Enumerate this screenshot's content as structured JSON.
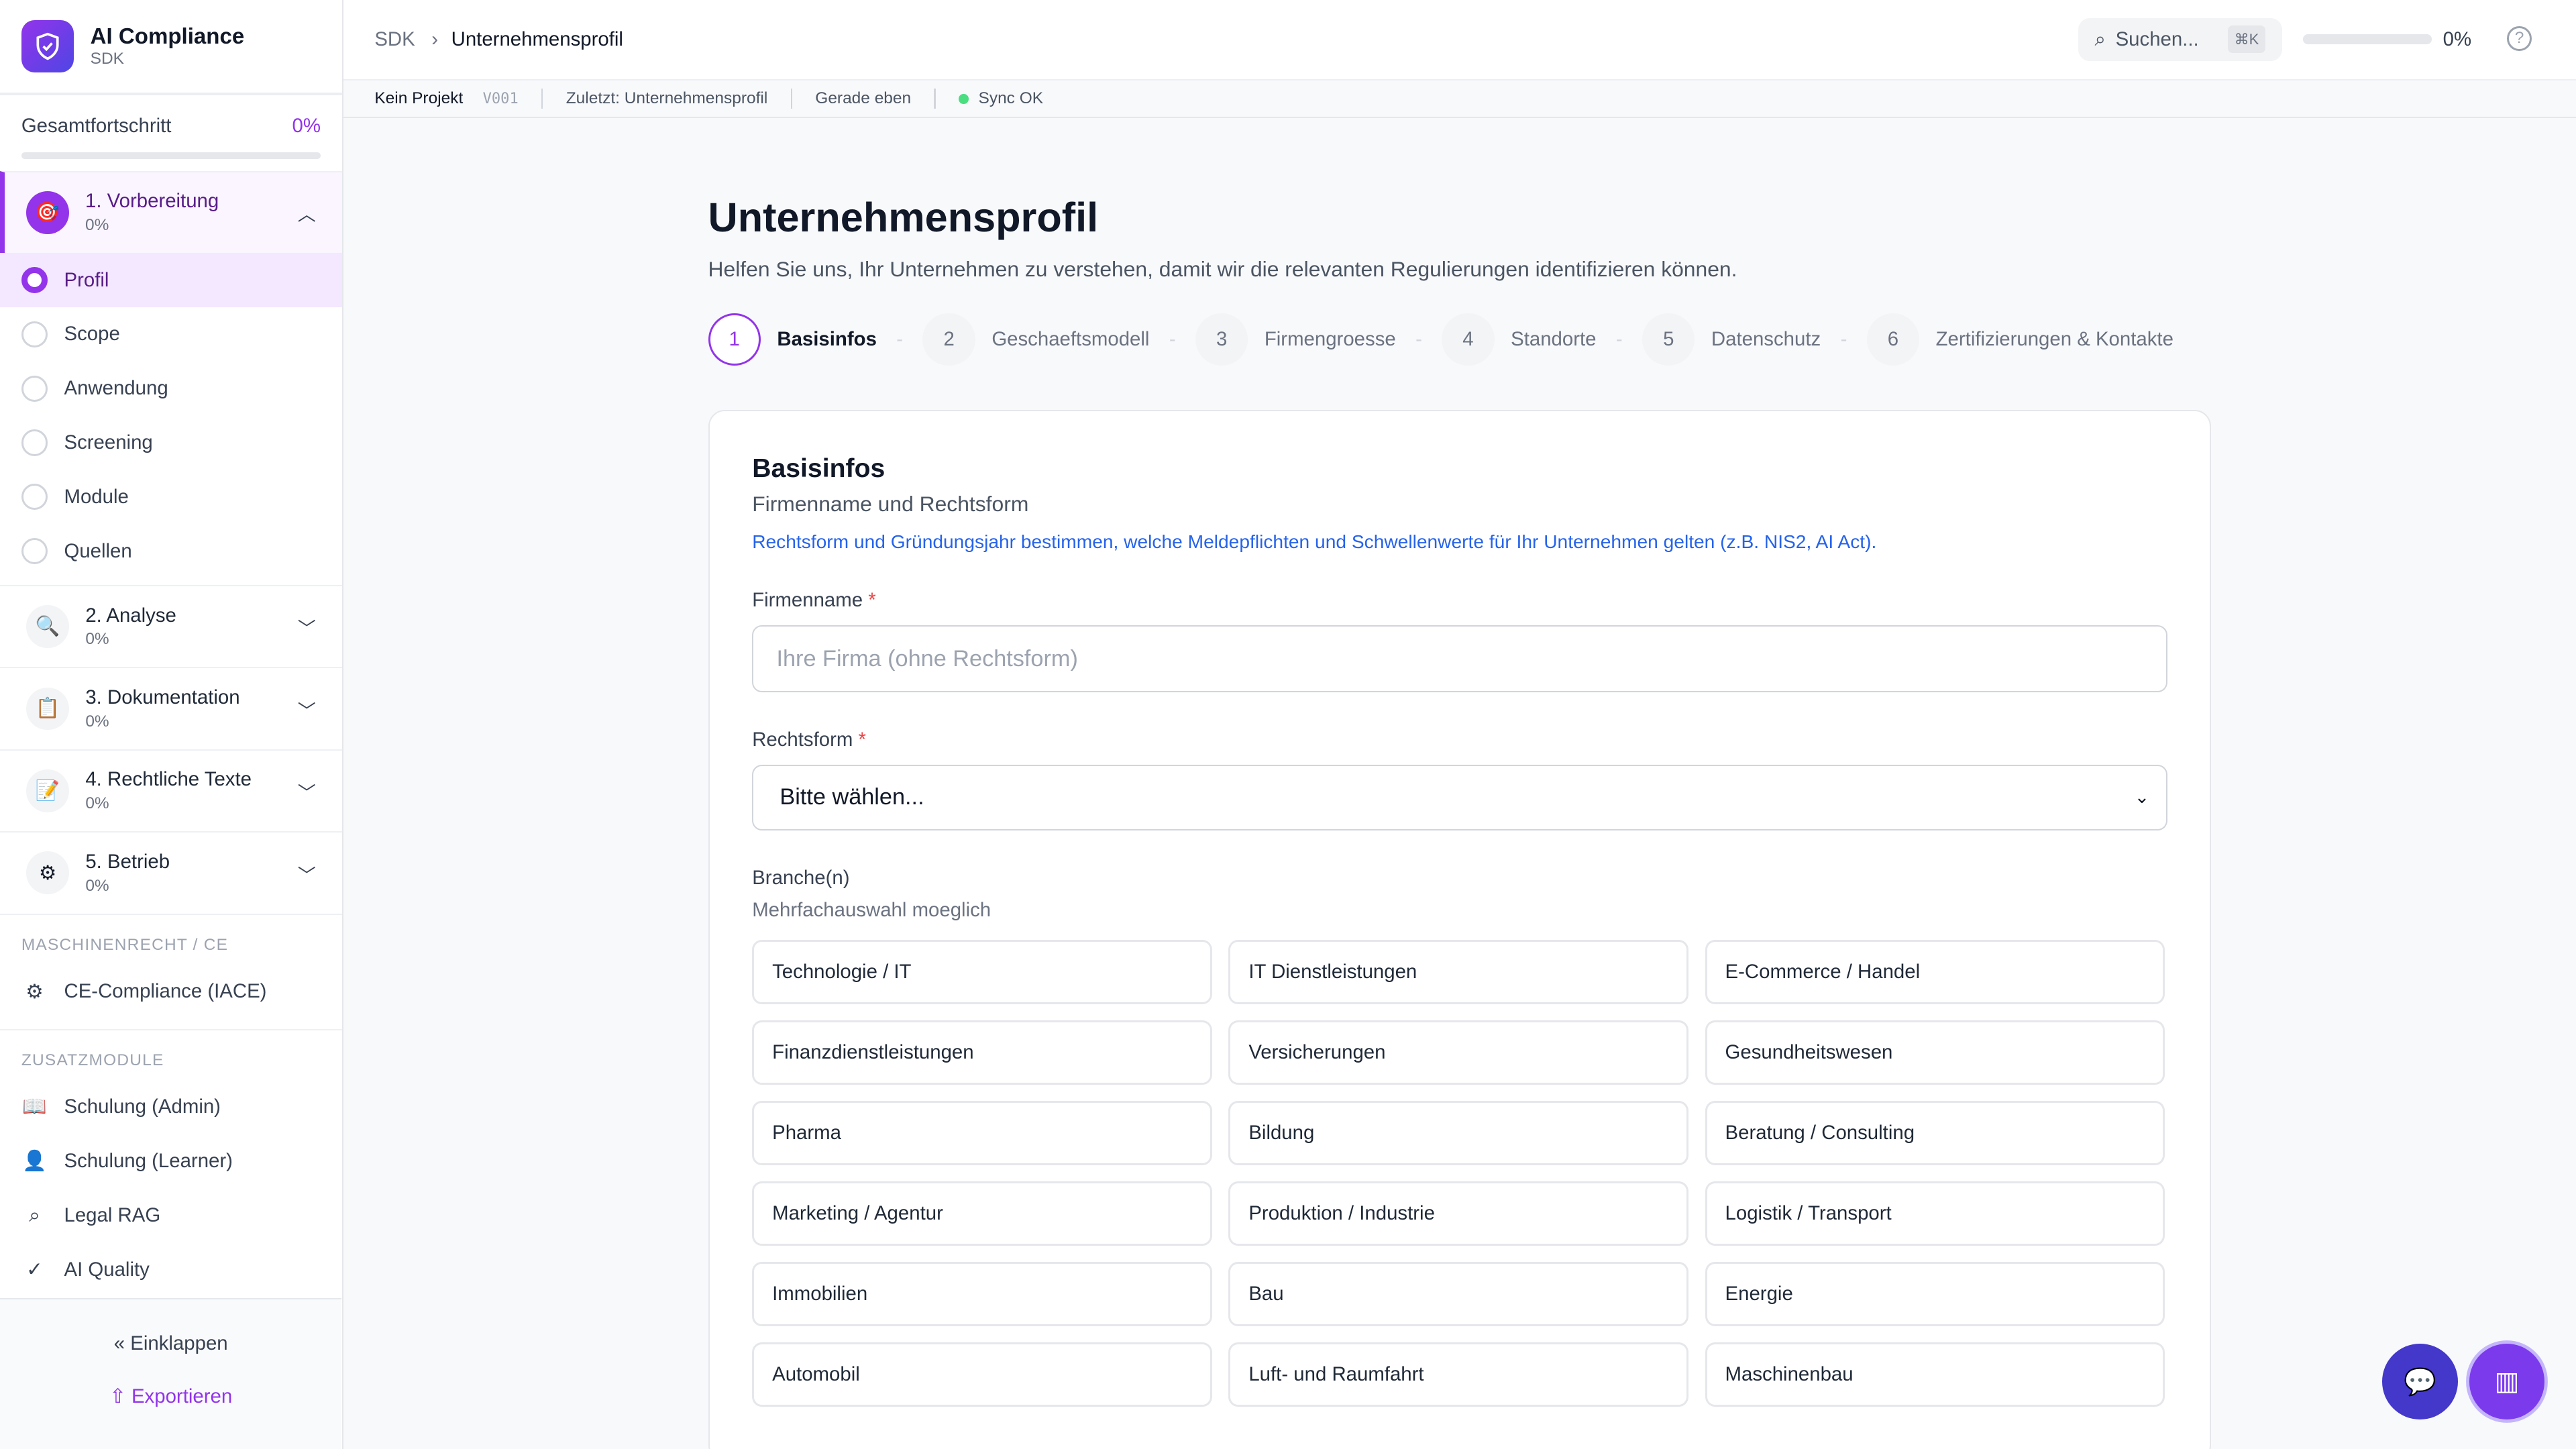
{
  "brand": {
    "title": "AI Compliance",
    "subtitle": "SDK"
  },
  "progress": {
    "label": "Gesamtfortschritt",
    "value": "0%",
    "fraction": 0
  },
  "sections": [
    {
      "label": "1. Vorbereitung",
      "pct": "0%",
      "icon": "target-icon",
      "expanded": true
    },
    {
      "label": "2. Analyse",
      "pct": "0%",
      "icon": "magnifier-icon"
    },
    {
      "label": "3. Dokumentation",
      "pct": "0%",
      "icon": "document-icon"
    },
    {
      "label": "4. Rechtliche Texte",
      "pct": "0%",
      "icon": "pencil-icon"
    },
    {
      "label": "5. Betrieb",
      "pct": "0%",
      "icon": "gear-icon"
    }
  ],
  "steps_nav": [
    "Profil",
    "Scope",
    "Anwendung",
    "Screening",
    "Module",
    "Quellen"
  ],
  "machine": {
    "heading": "MASCHINENRECHT / CE",
    "items": [
      "CE-Compliance (IACE)"
    ]
  },
  "extra": {
    "heading": "ZUSATZMODULE",
    "items": [
      "Schulung (Admin)",
      "Schulung (Learner)",
      "Legal RAG",
      "AI Quality"
    ]
  },
  "footer": {
    "collapse": "Einklappen",
    "export": "Exportieren"
  },
  "topbar": {
    "crumb_root": "SDK",
    "crumb_current": "Unternehmensprofil",
    "search": "Suchen...",
    "shortcut": "⌘K",
    "progress": "0%"
  },
  "status": {
    "project": "Kein Projekt",
    "version": "V001",
    "last": "Zuletzt: Unternehmensprofil",
    "time": "Gerade eben",
    "sync": "Sync OK"
  },
  "page": {
    "title": "Unternehmensprofil",
    "subtitle": "Helfen Sie uns, Ihr Unternehmen zu verstehen, damit wir die relevanten Regulierungen identifizieren können."
  },
  "wizard": [
    {
      "n": "1",
      "label": "Basisinfos"
    },
    {
      "n": "2",
      "label": "Geschaeftsmodell"
    },
    {
      "n": "3",
      "label": "Firmengroesse"
    },
    {
      "n": "4",
      "label": "Standorte"
    },
    {
      "n": "5",
      "label": "Datenschutz"
    },
    {
      "n": "6",
      "label": "Zertifizierungen & Kontakte"
    }
  ],
  "form": {
    "title": "Basisinfos",
    "subtitle": "Firmenname und Rechtsform",
    "hint": "Rechtsform und Gründungsjahr bestimmen, welche Meldepflichten und Schwellenwerte für Ihr Unternehmen gelten (z.B. NIS2, AI Act).",
    "name_label": "Firmenname",
    "name_placeholder": "Ihre Firma (ohne Rechtsform)",
    "legal_label": "Rechtsform",
    "legal_value": "Bitte wählen...",
    "branch_label": "Branche(n)",
    "branch_hint": "Mehrfachauswahl moeglich",
    "branches": [
      "Technologie / IT",
      "IT Dienstleistungen",
      "E-Commerce / Handel",
      "Finanzdienstleistungen",
      "Versicherungen",
      "Gesundheitswesen",
      "Pharma",
      "Bildung",
      "Beratung / Consulting",
      "Marketing / Agentur",
      "Produktion / Industrie",
      "Logistik / Transport",
      "Immobilien",
      "Bau",
      "Energie",
      "Automobil",
      "Luft- und Raumfahrt",
      "Maschinenbau"
    ]
  },
  "colors": {
    "accent": "#9333ea",
    "link": "#2563eb",
    "sync": "#4ade80"
  }
}
